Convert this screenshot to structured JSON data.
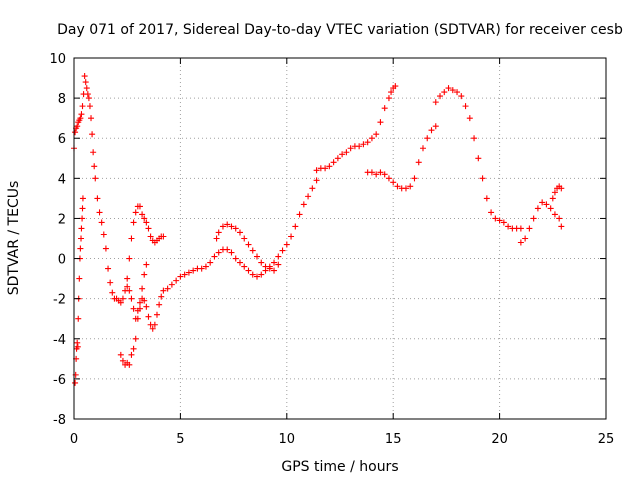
{
  "chart_data": {
    "type": "scatter",
    "title": "Day 071 of 2017, Sidereal Day-to-day VTEC variation (SDTVAR) for receiver cesb",
    "xlabel": "GPS time / hours",
    "ylabel": "SDTVAR / TECUs",
    "xlim": [
      0,
      25
    ],
    "ylim": [
      -8,
      10
    ],
    "xticks": [
      0,
      5,
      10,
      15,
      20,
      25
    ],
    "yticks": [
      -8,
      -6,
      -4,
      -2,
      0,
      2,
      4,
      6,
      8,
      10
    ],
    "grid": true,
    "marker": "+",
    "marker_color": "#ff0000",
    "series": [
      {
        "x": [
          0.0,
          0.05,
          0.1,
          0.15,
          0.2,
          0.25,
          0.3,
          0.35,
          0.4,
          0.45,
          0.5,
          0.55,
          0.6,
          0.65,
          0.7,
          0.75,
          0.8,
          0.85,
          0.9,
          0.95,
          1.0,
          1.1,
          1.2,
          1.3,
          1.4,
          1.5,
          1.6,
          1.7,
          1.8,
          1.9,
          2.0,
          2.1,
          2.2,
          2.3,
          2.4,
          2.5,
          2.6,
          2.7,
          2.8,
          2.9,
          3.0,
          3.1,
          3.2,
          3.3,
          3.4,
          3.5,
          3.6,
          3.7,
          3.8,
          3.9,
          4.0,
          4.1,
          4.2,
          4.4,
          4.6,
          4.8,
          5.0,
          5.2,
          5.4,
          5.6,
          5.8,
          6.0,
          6.2,
          6.4,
          6.6,
          6.8,
          7.0,
          7.2,
          7.4,
          7.6,
          7.8,
          8.0,
          8.2,
          8.4,
          8.6,
          8.8,
          9.0,
          9.2,
          9.4,
          9.6,
          9.8,
          10.0,
          10.2,
          10.4,
          10.6,
          10.8,
          11.0,
          11.2,
          11.4
        ],
        "values": [
          5.5,
          6.3,
          6.5,
          6.6,
          6.8,
          6.9,
          7.0,
          7.2,
          7.6,
          8.2,
          9.1,
          8.8,
          8.5,
          8.2,
          8.0,
          7.6,
          7.0,
          6.2,
          5.3,
          4.6,
          4.0,
          3.0,
          2.3,
          1.8,
          1.2,
          0.5,
          -0.5,
          -1.2,
          -1.7,
          -2.0,
          -2.0,
          -2.1,
          -2.2,
          -2.0,
          -1.6,
          -1.4,
          -1.6,
          -2.0,
          -2.5,
          -3.0,
          -2.6,
          -2.2,
          -2.0,
          -2.1,
          -2.4,
          -2.9,
          -3.3,
          -3.5,
          -3.3,
          -2.8,
          -2.3,
          -1.9,
          -1.6,
          -1.5,
          -1.3,
          -1.1,
          -0.9,
          -0.8,
          -0.7,
          -0.6,
          -0.5,
          -0.5,
          -0.4,
          -0.2,
          0.1,
          0.3,
          0.45,
          0.45,
          0.3,
          0.0,
          -0.2,
          -0.4,
          -0.6,
          -0.8,
          -0.9,
          -0.8,
          -0.6,
          -0.4,
          -0.2,
          0.1,
          0.4,
          0.7,
          1.1,
          1.6,
          2.2,
          2.7,
          3.1,
          3.5,
          3.9
        ]
      },
      {
        "x": [
          0.05,
          0.08,
          0.1,
          0.12,
          0.15,
          0.18,
          0.2,
          0.22,
          0.25,
          0.28,
          0.3,
          0.33,
          0.35,
          0.38,
          0.4,
          0.42
        ],
        "values": [
          -6.2,
          -5.8,
          -5.0,
          -4.5,
          -4.2,
          -4.4,
          -3.0,
          -2.0,
          -1.0,
          0.0,
          0.5,
          1.0,
          1.5,
          2.0,
          2.5,
          3.0
        ]
      },
      {
        "x": [
          2.2,
          2.3,
          2.4,
          2.5,
          2.6,
          2.7,
          2.8,
          2.9,
          3.0,
          3.1,
          3.2,
          3.3,
          3.4
        ],
        "values": [
          -4.8,
          -5.1,
          -5.3,
          -5.2,
          -5.3,
          -4.8,
          -4.5,
          -4.0,
          -3.0,
          -2.5,
          -1.5,
          -0.8,
          -0.3
        ]
      },
      {
        "x": [
          2.5,
          2.6,
          2.7,
          2.8,
          2.9,
          3.0,
          3.1,
          3.2,
          3.3,
          3.4,
          3.5,
          3.6,
          3.7,
          3.8,
          3.9,
          4.0,
          4.1,
          4.2
        ],
        "values": [
          -1.0,
          0.0,
          1.0,
          1.8,
          2.3,
          2.6,
          2.6,
          2.2,
          2.0,
          1.8,
          1.5,
          1.1,
          0.9,
          0.8,
          0.9,
          1.0,
          1.1,
          1.1
        ]
      },
      {
        "x": [
          6.7,
          6.8,
          7.0,
          7.2,
          7.4,
          7.6,
          7.8,
          8.0,
          8.2,
          8.4,
          8.6,
          8.8,
          9.0,
          9.2,
          9.4,
          9.6
        ],
        "values": [
          1.0,
          1.3,
          1.6,
          1.7,
          1.6,
          1.5,
          1.3,
          1.0,
          0.7,
          0.4,
          0.1,
          -0.2,
          -0.4,
          -0.5,
          -0.6,
          -0.3
        ]
      },
      {
        "x": [
          11.4,
          11.6,
          11.8,
          12.0,
          12.2,
          12.4,
          12.6,
          12.8,
          13.0,
          13.2,
          13.4,
          13.6,
          13.8,
          14.0,
          14.2,
          14.4,
          14.6,
          14.8,
          14.9,
          15.0,
          15.1
        ],
        "values": [
          4.4,
          4.5,
          4.5,
          4.6,
          4.8,
          5.0,
          5.2,
          5.3,
          5.5,
          5.6,
          5.6,
          5.7,
          5.8,
          6.0,
          6.2,
          6.8,
          7.5,
          8.0,
          8.3,
          8.5,
          8.6
        ]
      },
      {
        "x": [
          13.8,
          14.0,
          14.2,
          14.4,
          14.6,
          14.8,
          15.0,
          15.2,
          15.4,
          15.6,
          15.8,
          16.0,
          16.2,
          16.4,
          16.6,
          16.8,
          17.0
        ],
        "values": [
          4.3,
          4.3,
          4.2,
          4.3,
          4.2,
          4.0,
          3.8,
          3.6,
          3.5,
          3.5,
          3.6,
          4.0,
          4.8,
          5.5,
          6.0,
          6.4,
          6.6
        ]
      },
      {
        "x": [
          17.0,
          17.2,
          17.4,
          17.6,
          17.8,
          18.0,
          18.2,
          18.4,
          18.6,
          18.8,
          19.0,
          19.2,
          19.4,
          19.6,
          19.8,
          20.0,
          20.2,
          20.4,
          20.6,
          20.8,
          21.0
        ],
        "values": [
          7.8,
          8.1,
          8.3,
          8.5,
          8.4,
          8.3,
          8.1,
          7.6,
          7.0,
          6.0,
          5.0,
          4.0,
          3.0,
          2.3,
          2.0,
          1.9,
          1.8,
          1.6,
          1.5,
          1.5,
          1.5
        ]
      },
      {
        "x": [
          21.0,
          21.2,
          21.4,
          21.6,
          21.8,
          22.0,
          22.2,
          22.4,
          22.6,
          22.8,
          22.9
        ],
        "values": [
          0.8,
          1.0,
          1.5,
          2.0,
          2.5,
          2.8,
          2.7,
          2.5,
          2.2,
          2.0,
          1.6
        ]
      },
      {
        "x": [
          22.5,
          22.6,
          22.7,
          22.8,
          22.9
        ],
        "values": [
          3.0,
          3.3,
          3.5,
          3.6,
          3.5
        ]
      }
    ]
  }
}
